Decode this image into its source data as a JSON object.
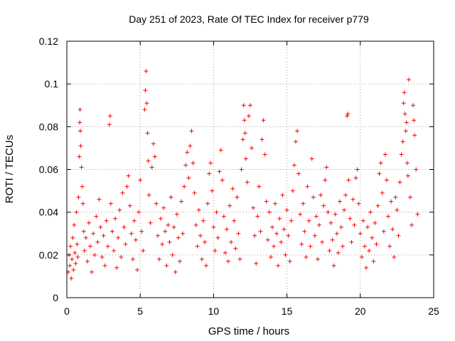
{
  "chart_data": {
    "type": "scatter",
    "title": "Day 251 of 2023, Rate Of TEC Index for receiver p779",
    "xlabel": "GPS time / hours",
    "ylabel": "ROTI / TECUs",
    "xlim": [
      0,
      25
    ],
    "ylim": [
      0,
      0.12
    ],
    "xticks": [
      0,
      5,
      10,
      15,
      20,
      25
    ],
    "yticks": [
      0,
      0.02,
      0.04,
      0.06,
      0.08,
      0.1,
      0.12
    ],
    "xtick_labels": [
      "0",
      "5",
      "10",
      "15",
      "20",
      "25"
    ],
    "ytick_labels": [
      "0",
      "0.02",
      "0.04",
      "0.06",
      "0.08",
      "0.1",
      "0.12"
    ],
    "grid": true,
    "marker": "+",
    "color": "#ff0000",
    "points": [
      [
        0.1,
        0.012
      ],
      [
        0.15,
        0.02
      ],
      [
        0.2,
        0.015
      ],
      [
        0.25,
        0.024
      ],
      [
        0.3,
        0.009
      ],
      [
        0.35,
        0.018
      ],
      [
        0.4,
        0.028
      ],
      [
        0.45,
        0.013
      ],
      [
        0.5,
        0.034
      ],
      [
        0.55,
        0.021
      ],
      [
        0.6,
        0.016
      ],
      [
        0.65,
        0.04
      ],
      [
        0.7,
        0.025
      ],
      [
        0.75,
        0.019
      ],
      [
        0.8,
        0.047
      ],
      [
        0.85,
        0.066
      ],
      [
        0.88,
        0.082
      ],
      [
        0.9,
        0.088
      ],
      [
        0.92,
        0.078
      ],
      [
        0.95,
        0.071
      ],
      [
        1.0,
        0.061
      ],
      [
        1.05,
        0.052
      ],
      [
        1.1,
        0.044
      ],
      [
        1.15,
        0.031
      ],
      [
        1.2,
        0.022
      ],
      [
        1.3,
        0.028
      ],
      [
        1.4,
        0.017
      ],
      [
        1.5,
        0.035
      ],
      [
        1.6,
        0.024
      ],
      [
        1.7,
        0.012
      ],
      [
        1.8,
        0.03
      ],
      [
        1.9,
        0.02
      ],
      [
        2.0,
        0.038
      ],
      [
        2.1,
        0.026
      ],
      [
        2.2,
        0.046
      ],
      [
        2.3,
        0.033
      ],
      [
        2.4,
        0.019
      ],
      [
        2.5,
        0.029
      ],
      [
        2.6,
        0.015
      ],
      [
        2.7,
        0.036
      ],
      [
        2.8,
        0.024
      ],
      [
        2.9,
        0.081
      ],
      [
        2.95,
        0.085
      ],
      [
        3.0,
        0.044
      ],
      [
        3.1,
        0.031
      ],
      [
        3.2,
        0.022
      ],
      [
        3.3,
        0.037
      ],
      [
        3.4,
        0.014
      ],
      [
        3.5,
        0.028
      ],
      [
        3.6,
        0.041
      ],
      [
        3.7,
        0.019
      ],
      [
        3.8,
        0.049
      ],
      [
        3.9,
        0.033
      ],
      [
        4.0,
        0.025
      ],
      [
        4.1,
        0.052
      ],
      [
        4.2,
        0.057
      ],
      [
        4.3,
        0.043
      ],
      [
        4.4,
        0.03
      ],
      [
        4.5,
        0.018
      ],
      [
        4.6,
        0.036
      ],
      [
        4.7,
        0.027
      ],
      [
        4.8,
        0.013
      ],
      [
        4.9,
        0.04
      ],
      [
        5.0,
        0.055
      ],
      [
        5.1,
        0.031
      ],
      [
        5.2,
        0.022
      ],
      [
        5.3,
        0.088
      ],
      [
        5.35,
        0.097
      ],
      [
        5.4,
        0.106
      ],
      [
        5.45,
        0.091
      ],
      [
        5.5,
        0.077
      ],
      [
        5.55,
        0.064
      ],
      [
        5.6,
        0.048
      ],
      [
        5.7,
        0.035
      ],
      [
        5.8,
        0.061
      ],
      [
        5.9,
        0.072
      ],
      [
        6.0,
        0.066
      ],
      [
        6.1,
        0.044
      ],
      [
        6.2,
        0.029
      ],
      [
        6.3,
        0.018
      ],
      [
        6.4,
        0.037
      ],
      [
        6.5,
        0.025
      ],
      [
        6.6,
        0.042
      ],
      [
        6.7,
        0.031
      ],
      [
        6.8,
        0.015
      ],
      [
        6.9,
        0.034
      ],
      [
        7.0,
        0.026
      ],
      [
        7.1,
        0.047
      ],
      [
        7.2,
        0.02
      ],
      [
        7.3,
        0.033
      ],
      [
        7.4,
        0.012
      ],
      [
        7.5,
        0.039
      ],
      [
        7.6,
        0.028
      ],
      [
        7.7,
        0.017
      ],
      [
        7.8,
        0.045
      ],
      [
        7.9,
        0.03
      ],
      [
        8.0,
        0.052
      ],
      [
        8.1,
        0.062
      ],
      [
        8.2,
        0.068
      ],
      [
        8.3,
        0.056
      ],
      [
        8.4,
        0.071
      ],
      [
        8.5,
        0.078
      ],
      [
        8.6,
        0.063
      ],
      [
        8.7,
        0.049
      ],
      [
        8.8,
        0.034
      ],
      [
        8.9,
        0.024
      ],
      [
        9.0,
        0.041
      ],
      [
        9.1,
        0.029
      ],
      [
        9.2,
        0.018
      ],
      [
        9.3,
        0.036
      ],
      [
        9.4,
        0.026
      ],
      [
        9.5,
        0.015
      ],
      [
        9.6,
        0.044
      ],
      [
        9.7,
        0.058
      ],
      [
        9.8,
        0.063
      ],
      [
        9.9,
        0.05
      ],
      [
        10.0,
        0.033
      ],
      [
        10.1,
        0.022
      ],
      [
        10.2,
        0.04
      ],
      [
        10.3,
        0.028
      ],
      [
        10.4,
        0.059
      ],
      [
        10.5,
        0.069
      ],
      [
        10.6,
        0.055
      ],
      [
        10.7,
        0.038
      ],
      [
        10.8,
        0.021
      ],
      [
        10.9,
        0.032
      ],
      [
        11.0,
        0.017
      ],
      [
        11.1,
        0.043
      ],
      [
        11.2,
        0.026
      ],
      [
        11.3,
        0.051
      ],
      [
        11.4,
        0.036
      ],
      [
        11.5,
        0.023
      ],
      [
        11.6,
        0.047
      ],
      [
        11.7,
        0.03
      ],
      [
        11.8,
        0.018
      ],
      [
        11.9,
        0.06
      ],
      [
        12.0,
        0.074
      ],
      [
        12.05,
        0.09
      ],
      [
        12.1,
        0.083
      ],
      [
        12.15,
        0.077
      ],
      [
        12.2,
        0.065
      ],
      [
        12.3,
        0.054
      ],
      [
        12.4,
        0.085
      ],
      [
        12.5,
        0.09
      ],
      [
        12.6,
        0.07
      ],
      [
        12.7,
        0.042
      ],
      [
        12.8,
        0.029
      ],
      [
        12.9,
        0.016
      ],
      [
        13.0,
        0.038
      ],
      [
        13.1,
        0.052
      ],
      [
        13.2,
        0.031
      ],
      [
        13.3,
        0.074
      ],
      [
        13.4,
        0.083
      ],
      [
        13.5,
        0.067
      ],
      [
        13.6,
        0.045
      ],
      [
        13.7,
        0.027
      ],
      [
        13.8,
        0.04
      ],
      [
        13.9,
        0.019
      ],
      [
        14.0,
        0.033
      ],
      [
        14.1,
        0.024
      ],
      [
        14.2,
        0.044
      ],
      [
        14.3,
        0.03
      ],
      [
        14.4,
        0.015
      ],
      [
        14.5,
        0.037
      ],
      [
        14.6,
        0.026
      ],
      [
        14.7,
        0.048
      ],
      [
        14.8,
        0.032
      ],
      [
        14.9,
        0.02
      ],
      [
        15.0,
        0.041
      ],
      [
        15.1,
        0.029
      ],
      [
        15.2,
        0.017
      ],
      [
        15.3,
        0.036
      ],
      [
        15.4,
        0.05
      ],
      [
        15.5,
        0.062
      ],
      [
        15.6,
        0.073
      ],
      [
        15.7,
        0.078
      ],
      [
        15.8,
        0.058
      ],
      [
        15.9,
        0.039
      ],
      [
        16.0,
        0.025
      ],
      [
        16.1,
        0.044
      ],
      [
        16.2,
        0.031
      ],
      [
        16.3,
        0.019
      ],
      [
        16.4,
        0.052
      ],
      [
        16.5,
        0.036
      ],
      [
        16.6,
        0.024
      ],
      [
        16.7,
        0.065
      ],
      [
        16.8,
        0.047
      ],
      [
        16.9,
        0.029
      ],
      [
        17.0,
        0.038
      ],
      [
        17.1,
        0.018
      ],
      [
        17.2,
        0.034
      ],
      [
        17.3,
        0.048
      ],
      [
        17.4,
        0.026
      ],
      [
        17.5,
        0.043
      ],
      [
        17.6,
        0.055
      ],
      [
        17.7,
        0.061
      ],
      [
        17.8,
        0.04
      ],
      [
        17.9,
        0.022
      ],
      [
        18.0,
        0.035
      ],
      [
        18.1,
        0.027
      ],
      [
        18.2,
        0.015
      ],
      [
        18.3,
        0.039
      ],
      [
        18.4,
        0.03
      ],
      [
        18.5,
        0.021
      ],
      [
        18.6,
        0.045
      ],
      [
        18.7,
        0.033
      ],
      [
        18.8,
        0.024
      ],
      [
        18.9,
        0.041
      ],
      [
        19.0,
        0.048
      ],
      [
        19.1,
        0.085
      ],
      [
        19.15,
        0.086
      ],
      [
        19.2,
        0.055
      ],
      [
        19.3,
        0.037
      ],
      [
        19.4,
        0.026
      ],
      [
        19.5,
        0.046
      ],
      [
        19.6,
        0.034
      ],
      [
        19.7,
        0.056
      ],
      [
        19.8,
        0.06
      ],
      [
        19.9,
        0.044
      ],
      [
        20.0,
        0.03
      ],
      [
        20.1,
        0.019
      ],
      [
        20.2,
        0.036
      ],
      [
        20.3,
        0.024
      ],
      [
        20.4,
        0.014
      ],
      [
        20.5,
        0.033
      ],
      [
        20.6,
        0.022
      ],
      [
        20.7,
        0.04
      ],
      [
        20.8,
        0.028
      ],
      [
        20.9,
        0.017
      ],
      [
        21.0,
        0.035
      ],
      [
        21.1,
        0.025
      ],
      [
        21.2,
        0.043
      ],
      [
        21.3,
        0.058
      ],
      [
        21.4,
        0.063
      ],
      [
        21.5,
        0.049
      ],
      [
        21.6,
        0.031
      ],
      [
        21.7,
        0.067
      ],
      [
        21.8,
        0.055
      ],
      [
        21.9,
        0.038
      ],
      [
        22.0,
        0.024
      ],
      [
        22.1,
        0.045
      ],
      [
        22.2,
        0.032
      ],
      [
        22.3,
        0.019
      ],
      [
        22.4,
        0.047
      ],
      [
        22.5,
        0.041
      ],
      [
        22.6,
        0.029
      ],
      [
        22.7,
        0.054
      ],
      [
        22.8,
        0.067
      ],
      [
        22.9,
        0.073
      ],
      [
        22.95,
        0.091
      ],
      [
        23.0,
        0.096
      ],
      [
        23.05,
        0.086
      ],
      [
        23.1,
        0.078
      ],
      [
        23.15,
        0.082
      ],
      [
        23.2,
        0.063
      ],
      [
        23.25,
        0.057
      ],
      [
        23.3,
        0.102
      ],
      [
        23.4,
        0.047
      ],
      [
        23.5,
        0.034
      ],
      [
        23.6,
        0.09
      ],
      [
        23.65,
        0.083
      ],
      [
        23.7,
        0.076
      ],
      [
        23.8,
        0.06
      ],
      [
        23.9,
        0.039
      ]
    ]
  }
}
